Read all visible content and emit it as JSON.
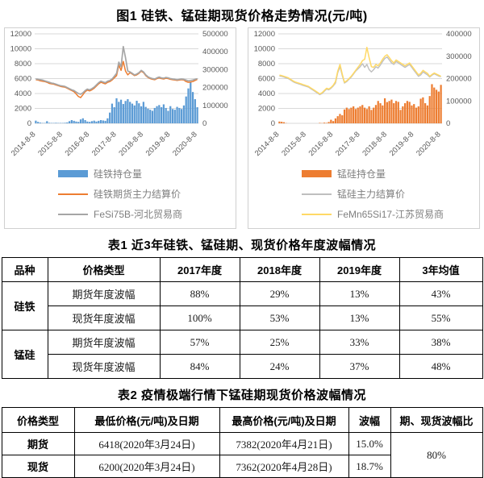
{
  "figure": {
    "title": "图1 硅铁、锰硅期现货价格走势情况(元/吨)"
  },
  "chart_data": [
    {
      "type": "bar",
      "name": "硅铁期现货价格走势",
      "left_axis": {
        "max": 12000,
        "ticks": [
          12000,
          10000,
          8000,
          6000,
          4000,
          2000,
          0
        ]
      },
      "right_axis": {
        "max": 500000,
        "ticks": [
          500000,
          400000,
          300000,
          200000,
          100000,
          0
        ]
      },
      "x_tick_labels": [
        "2014-8-8",
        "2015-8-8",
        "2016-8-8",
        "2017-8-8",
        "2018-8-8",
        "2019-8-8",
        "2020-8-8"
      ],
      "x_tick_indices": [
        0,
        12,
        24,
        36,
        48,
        60,
        72
      ],
      "grid": "horizontal",
      "legend_position": "bottom",
      "bars": {
        "name": "硅铁持仓量",
        "color": "#5B9BD5",
        "axis": "right",
        "values": [
          15000,
          8000,
          4000,
          2000,
          2000,
          12000,
          3000,
          2000,
          2000,
          3000,
          2000,
          2000,
          2000,
          3000,
          5000,
          12000,
          18000,
          14000,
          10000,
          8000,
          22000,
          28000,
          18000,
          10000,
          8000,
          12000,
          15000,
          10000,
          14000,
          18000,
          16000,
          14000,
          28000,
          60000,
          110000,
          90000,
          140000,
          120000,
          132000,
          108000,
          125000,
          135000,
          120000,
          110000,
          100000,
          126000,
          112000,
          95000,
          120000,
          92000,
          82000,
          76000,
          70000,
          86000,
          96000,
          102000,
          90000,
          106000,
          86000,
          70000,
          96000,
          80000,
          76000,
          92000,
          86000,
          80000,
          100000,
          150000,
          195000,
          230000,
          175000,
          135000,
          90000
        ]
      },
      "series": [
        {
          "name": "硅铁期货主力结算价",
          "color": "#ED7D31",
          "width": 1.5,
          "axis": "left",
          "values": [
            5850,
            5800,
            5700,
            5650,
            5600,
            5500,
            5350,
            5300,
            5250,
            5150,
            5050,
            4950,
            4900,
            4850,
            4700,
            4550,
            4400,
            4250,
            3950,
            3600,
            3450,
            3850,
            4250,
            4450,
            4350,
            4500,
            4700,
            5000,
            5300,
            5500,
            5400,
            5300,
            5500,
            5600,
            5800,
            6100,
            6400,
            7800,
            7100,
            8300,
            7000,
            6500,
            6800,
            6600,
            6400,
            6500,
            6700,
            7000,
            6800,
            6400,
            6150,
            6000,
            5900,
            5850,
            6000,
            6100,
            6000,
            5950,
            6050,
            6000,
            5900,
            5850,
            5800,
            5750,
            5800,
            5850,
            5800,
            5600,
            5500,
            5550,
            5600,
            5750,
            5900
          ]
        },
        {
          "name": "FeSi75B-河北贸易商",
          "color": "#A6A6A6",
          "width": 1.7,
          "axis": "left",
          "values": [
            5950,
            5900,
            5850,
            5800,
            5700,
            5600,
            5500,
            5400,
            5350,
            5250,
            5150,
            5050,
            5000,
            4950,
            4800,
            4650,
            4500,
            4400,
            4200,
            4000,
            3900,
            4100,
            4400,
            4600,
            4500,
            4650,
            4850,
            5150,
            5450,
            5650,
            5550,
            5450,
            5650,
            5750,
            5950,
            6300,
            6700,
            8200,
            7600,
            10300,
            8800,
            7000,
            6900,
            6700,
            6500,
            6600,
            6800,
            7100,
            6900,
            6500,
            6250,
            6100,
            6000,
            5950,
            6100,
            6200,
            6100,
            6050,
            6150,
            6100,
            6000,
            5950,
            5900,
            5850,
            5900,
            5950,
            5900,
            5800,
            5700,
            5750,
            5800,
            5900,
            6000
          ]
        }
      ]
    },
    {
      "type": "bar",
      "name": "锰硅期现货价格走势",
      "left_axis": {
        "max": 12000,
        "ticks": [
          12000,
          10000,
          8000,
          6000,
          4000,
          2000,
          0
        ]
      },
      "right_axis": {
        "max": 400000,
        "ticks": [
          400000,
          300000,
          200000,
          100000,
          0
        ]
      },
      "x_tick_labels": [
        "2014-8-8",
        "2015-8-8",
        "2016-8-8",
        "2017-8-8",
        "2018-8-8",
        "2019-8-8",
        "2020-8-8"
      ],
      "x_tick_indices": [
        0,
        12,
        24,
        36,
        48,
        60,
        72
      ],
      "grid": "horizontal",
      "legend_position": "bottom",
      "bars": {
        "name": "锰硅持仓量",
        "color": "#ED7D31",
        "axis": "right",
        "values": [
          8000,
          7000,
          5000,
          1000,
          0,
          0,
          0,
          0,
          0,
          0,
          0,
          0,
          0,
          0,
          0,
          0,
          0,
          0,
          2000,
          1000,
          3000,
          2000,
          6000,
          16000,
          10000,
          22000,
          32000,
          42000,
          36000,
          62000,
          70000,
          64000,
          70000,
          76000,
          64000,
          70000,
          76000,
          82000,
          70000,
          64000,
          76000,
          60000,
          70000,
          82000,
          100000,
          90000,
          80000,
          112000,
          95000,
          100000,
          106000,
          90000,
          100000,
          96000,
          60000,
          76000,
          90000,
          100000,
          96000,
          80000,
          86000,
          70000,
          76000,
          110000,
          116000,
          90000,
          80000,
          122000,
          175000,
          160000,
          150000,
          142000,
          172000
        ]
      },
      "series": [
        {
          "name": "锰硅主力结算价",
          "color": "#BFBFBF",
          "width": 1.4,
          "axis": "left",
          "values": [
            6350,
            6300,
            6200,
            6100,
            6000,
            5800,
            5600,
            5450,
            5350,
            5250,
            5150,
            5050,
            4950,
            4850,
            4650,
            4450,
            4250,
            4050,
            3850,
            4000,
            4300,
            4600,
            4500,
            4700,
            5000,
            5400,
            6800,
            7600,
            6400,
            5400,
            5600,
            5900,
            6200,
            6600,
            7000,
            7300,
            7600,
            8000,
            7500,
            7900,
            7200,
            6900,
            7200,
            7600,
            7400,
            7800,
            8300,
            8700,
            8900,
            8500,
            8100,
            7900,
            8300,
            8100,
            7900,
            7700,
            7500,
            7700,
            7900,
            7500,
            7100,
            6700,
            6300,
            6500,
            6900,
            6700,
            6500,
            6200,
            6450,
            6650,
            6500,
            6350,
            6250
          ]
        },
        {
          "name": "FeMn65Si17-江苏贸易商",
          "color": "#FFD966",
          "width": 1.5,
          "axis": "left",
          "values": [
            6450,
            6400,
            6300,
            6200,
            6100,
            5900,
            5700,
            5550,
            5450,
            5350,
            5250,
            5150,
            5050,
            4950,
            4750,
            4550,
            4350,
            4150,
            3950,
            4100,
            4400,
            4700,
            4600,
            4800,
            5100,
            5600,
            7000,
            7900,
            6600,
            5500,
            5700,
            6000,
            6300,
            6700,
            7100,
            7500,
            7900,
            8400,
            8600,
            10200,
            8800,
            7600,
            7500,
            7900,
            7700,
            8100,
            8600,
            9000,
            9200,
            8800,
            8400,
            8100,
            8500,
            8300,
            8100,
            7900,
            7700,
            7900,
            8100,
            7700,
            7300,
            6900,
            6500,
            6700,
            7100,
            6900,
            6700,
            6300,
            6550,
            6750,
            6600,
            6450,
            6300
          ]
        }
      ]
    }
  ],
  "table1": {
    "title": "表1 近3年硅铁、锰硅期、现货价格年度波幅情况",
    "headers": [
      "品种",
      "价格类型",
      "2017年度",
      "2018年度",
      "2019年度",
      "3年均值"
    ],
    "groups": [
      "硅铁",
      "锰硅"
    ],
    "rows": [
      [
        "期货年度波幅",
        "88%",
        "29%",
        "13%",
        "43%"
      ],
      [
        "现货年度波幅",
        "100%",
        "53%",
        "13%",
        "55%"
      ],
      [
        "期货年度波幅",
        "57%",
        "25%",
        "33%",
        "38%"
      ],
      [
        "现货年度波幅",
        "84%",
        "24%",
        "37%",
        "48%"
      ]
    ]
  },
  "table2": {
    "title": "表2 疫情极端行情下锰硅期现货价格波幅情况",
    "headers": [
      "价格类型",
      "最低价格(元/吨)及日期",
      "最高价格(元/吨)及日期",
      "波幅",
      "期、现货波幅比"
    ],
    "rows": [
      [
        "期货",
        "6418(2020年3月24日)",
        "7382(2020年4月21日)",
        "15.0%"
      ],
      [
        "现货",
        "6200(2020年3月24日)",
        "7362(2020年4月28日)",
        "18.7%"
      ]
    ],
    "merged_ratio": "80%"
  },
  "colors": {
    "blue": "#5B9BD5",
    "orange": "#ED7D31",
    "gray": "#A6A6A6",
    "light_gray": "#BFBFBF",
    "yellow": "#FFD966",
    "grid": "#D9D9D9",
    "axis_text": "#595959"
  }
}
